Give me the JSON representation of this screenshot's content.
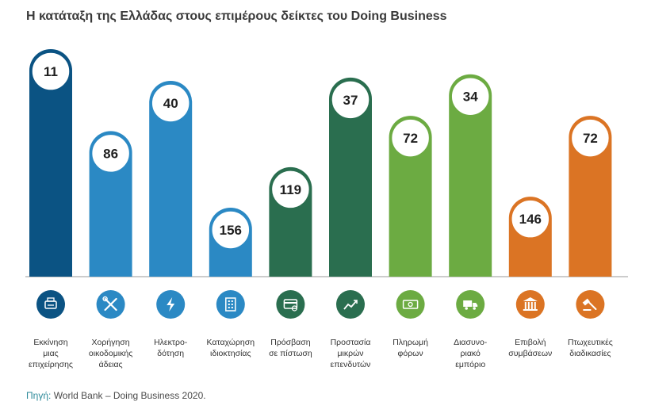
{
  "title": "Η κατάταξη της Ελλάδας στους επιμέρους δείκτες του Doing Business",
  "source": {
    "label": "Πηγή:",
    "text": " World Bank – Doing Business 2020."
  },
  "chart_data": {
    "type": "bar",
    "title": "Η κατάταξη της Ελλάδας στους επιμέρους δείκτες του Doing Business",
    "categories": [
      "Εκκίνηση μιας επιχείρησης",
      "Χορήγηση οικοδομικής άδειας",
      "Ηλεκτρο-δότηση",
      "Καταχώρηση ιδιοκτησίας",
      "Πρόσβαση σε πίστωση",
      "Προστασία μικρών επενδυτών",
      "Πληρωμή φόρων",
      "Διασυνο-ριακό εμπόριο",
      "Επιβολή συμβάσεων",
      "Πτωχευτικές διαδικασίες"
    ],
    "category_lines": [
      [
        "Εκκίνηση",
        "μιας",
        "επιχείρησης"
      ],
      [
        "Χορήγηση",
        "οικοδομικής",
        "άδειας"
      ],
      [
        "Ηλεκτρο-",
        "δότηση"
      ],
      [
        "Καταχώρηση",
        "ιδιοκτησίας"
      ],
      [
        "Πρόσβαση",
        "σε πίστωση"
      ],
      [
        "Προστασία",
        "μικρών",
        "επενδυτών"
      ],
      [
        "Πληρωμή",
        "φόρων"
      ],
      [
        "Διασυνο-",
        "ριακό",
        "εμπόριο"
      ],
      [
        "Επιβολή",
        "συμβάσεων"
      ],
      [
        "Πτωχευτικές",
        "διαδικασίες"
      ]
    ],
    "values": [
      11,
      86,
      40,
      156,
      119,
      37,
      72,
      34,
      146,
      72
    ],
    "colors": [
      "#0b5383",
      "#2b89c4",
      "#2b89c4",
      "#2b89c4",
      "#2a6e4f",
      "#2a6e4f",
      "#6cab42",
      "#6cab42",
      "#db7424",
      "#db7424"
    ],
    "icons": [
      "register-icon",
      "tools-icon",
      "lightning-icon",
      "building-icon",
      "credit-card-icon",
      "growth-chart-icon",
      "money-icon",
      "truck-icon",
      "courthouse-icon",
      "gavel-icon"
    ],
    "xlabel": "",
    "ylabel": "",
    "grid": false,
    "legend": "none"
  }
}
